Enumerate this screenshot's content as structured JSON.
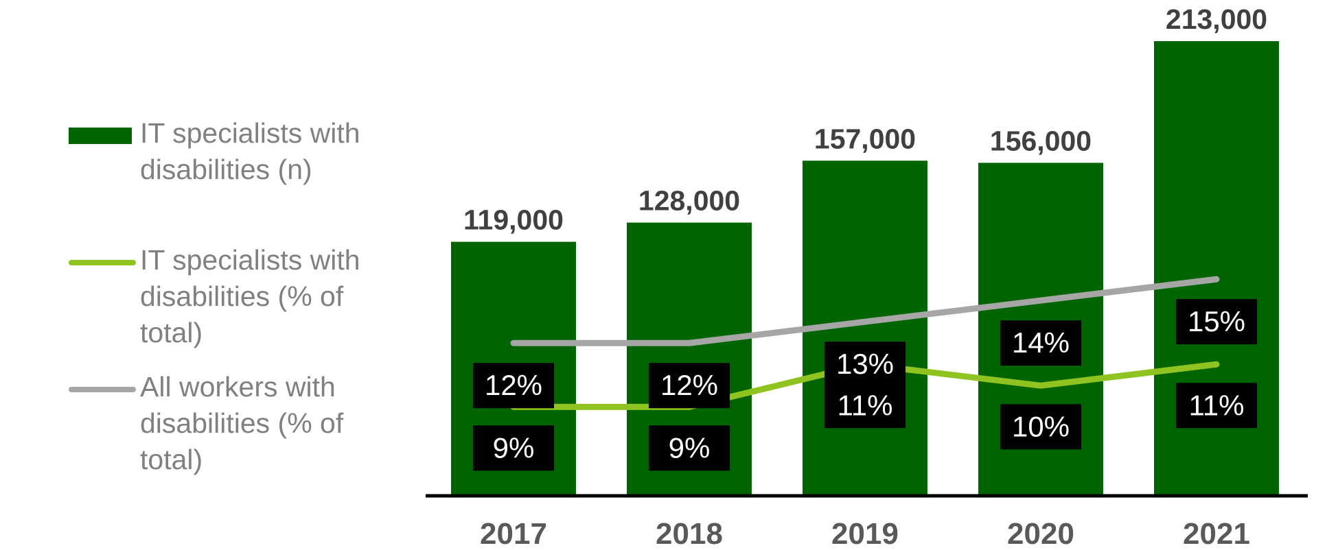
{
  "chart_data": {
    "type": "bar",
    "categories": [
      "2017",
      "2018",
      "2019",
      "2020",
      "2021"
    ],
    "series": [
      {
        "name": "IT specialists with disabilities (n)",
        "kind": "bar",
        "values": [
          119000,
          128000,
          157000,
          156000,
          213000
        ],
        "labels": [
          "119,000",
          "128,000",
          "157,000",
          "156,000",
          "213,000"
        ],
        "color": "#006400"
      },
      {
        "name": "IT specialists with disabilities (% of total)",
        "kind": "line",
        "values": [
          9,
          9,
          11,
          10,
          11
        ],
        "labels": [
          "9%",
          "9%",
          "11%",
          "10%",
          "11%"
        ],
        "color": "#8fc31f"
      },
      {
        "name": "All workers with disabilities (% of total)",
        "kind": "line",
        "values": [
          12,
          12,
          13,
          14,
          15
        ],
        "labels": [
          "12%",
          "12%",
          "13%",
          "14%",
          "15%"
        ],
        "color": "#a6a6a6"
      }
    ],
    "title": "",
    "xlabel": "",
    "ylabel": "",
    "ylim": [
      0,
      213000
    ],
    "grid": false,
    "legend_position": "left",
    "colors": {
      "label_box": "#000000",
      "label_text": "#ffffff",
      "value_text": "#404040",
      "axis": "#000000",
      "legend_text": "#808080"
    }
  }
}
